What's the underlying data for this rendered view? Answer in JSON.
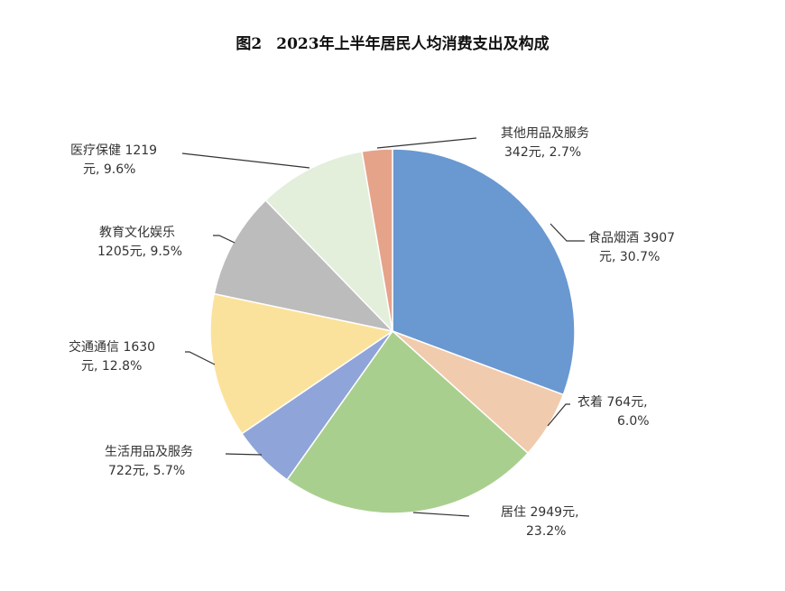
{
  "title": {
    "figure": "图2",
    "text": "2023年上半年居民人均消费支出及构成"
  },
  "chart_data": {
    "type": "pie",
    "title": "图2 2023年上半年居民人均消费支出及构成",
    "unit": "元",
    "start_angle_deg": 0,
    "direction": "clockwise",
    "categories": [
      "食品烟酒",
      "衣着",
      "居住",
      "生活用品及服务",
      "交通通信",
      "教育文化娱乐",
      "医疗保健",
      "其他用品及服务"
    ],
    "values": [
      3907,
      764,
      2949,
      722,
      1630,
      1205,
      1219,
      342
    ],
    "percentages": [
      30.7,
      6.0,
      23.2,
      5.7,
      12.8,
      9.5,
      9.6,
      2.7
    ],
    "colors": [
      "#6a98d0",
      "#f1cbad",
      "#a9cf8e",
      "#8fa5d9",
      "#fbe29c",
      "#bcbcbc",
      "#e3eedb",
      "#e5a38a"
    ],
    "legend": "none",
    "labels": [
      {
        "line1": "食品烟酒 3907",
        "line2": "元, 30.7%"
      },
      {
        "line1": "衣着 764元,",
        "line2": "6.0%"
      },
      {
        "line1": "居住 2949元,",
        "line2": "23.2%"
      },
      {
        "line1": "生活用品及服务",
        "line2": "722元, 5.7%"
      },
      {
        "line1": "交通通信 1630",
        "line2": "元, 12.8%"
      },
      {
        "line1": "教育文化娱乐",
        "line2": "1205元, 9.5%"
      },
      {
        "line1": "医疗保健 1219",
        "line2": "元, 9.6%"
      },
      {
        "line1": "其他用品及服务",
        "line2": "342元, 2.7%"
      }
    ]
  }
}
